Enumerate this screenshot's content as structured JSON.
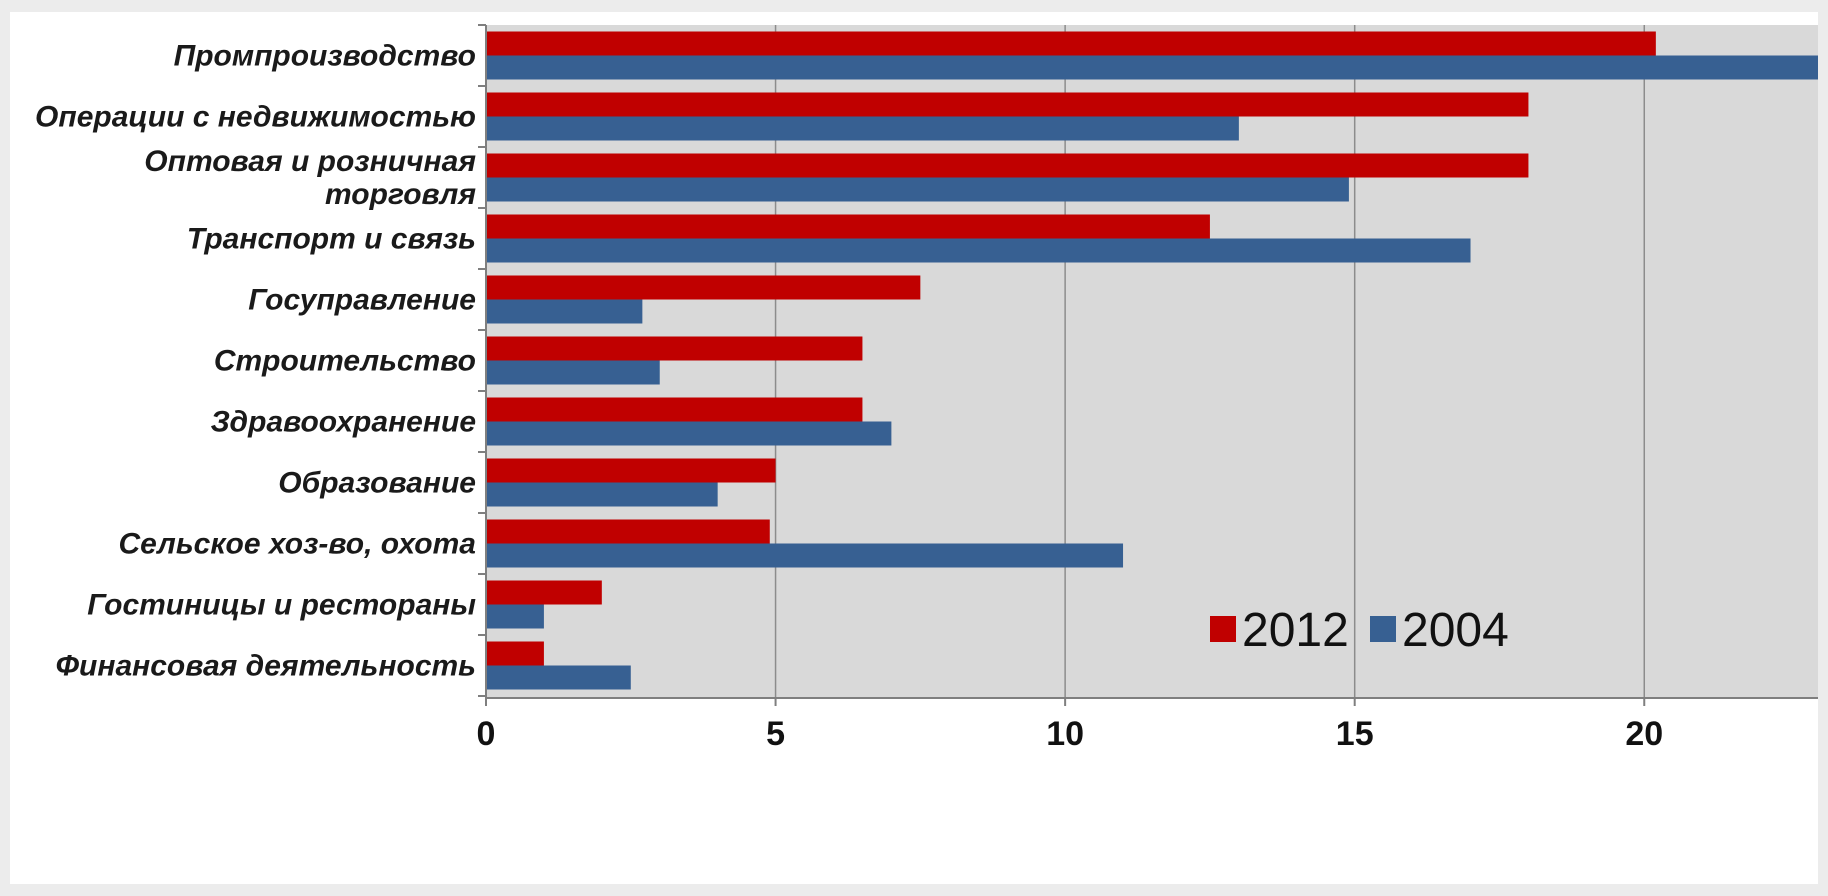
{
  "chart_data": {
    "type": "bar",
    "orientation": "horizontal",
    "categories": [
      "Промпроизводство",
      "Операции с недвижимостью",
      "Оптовая и розничная\nторговля",
      "Транспорт и связь",
      "Госуправление",
      "Строительство",
      "Здравоохранение",
      "Образование",
      "Сельское хоз-во, охота",
      "Гостиницы и рестораны",
      "Финансовая деятельность"
    ],
    "series": [
      {
        "name": "2012",
        "color": "#c00000",
        "values": [
          20.2,
          18.0,
          18.0,
          12.5,
          7.5,
          6.5,
          6.5,
          5.0,
          4.9,
          2.0,
          1.0
        ]
      },
      {
        "name": "2004",
        "color": "#376092",
        "values": [
          23.0,
          13.0,
          14.9,
          17.0,
          2.7,
          3.0,
          7.0,
          4.0,
          11.0,
          1.0,
          2.5
        ]
      }
    ],
    "xlim": [
      0,
      23
    ],
    "xticks": [
      0,
      5,
      10,
      15,
      20
    ],
    "grid": true,
    "legend": "bottom-right",
    "plot_background": "#d9d9d9"
  }
}
